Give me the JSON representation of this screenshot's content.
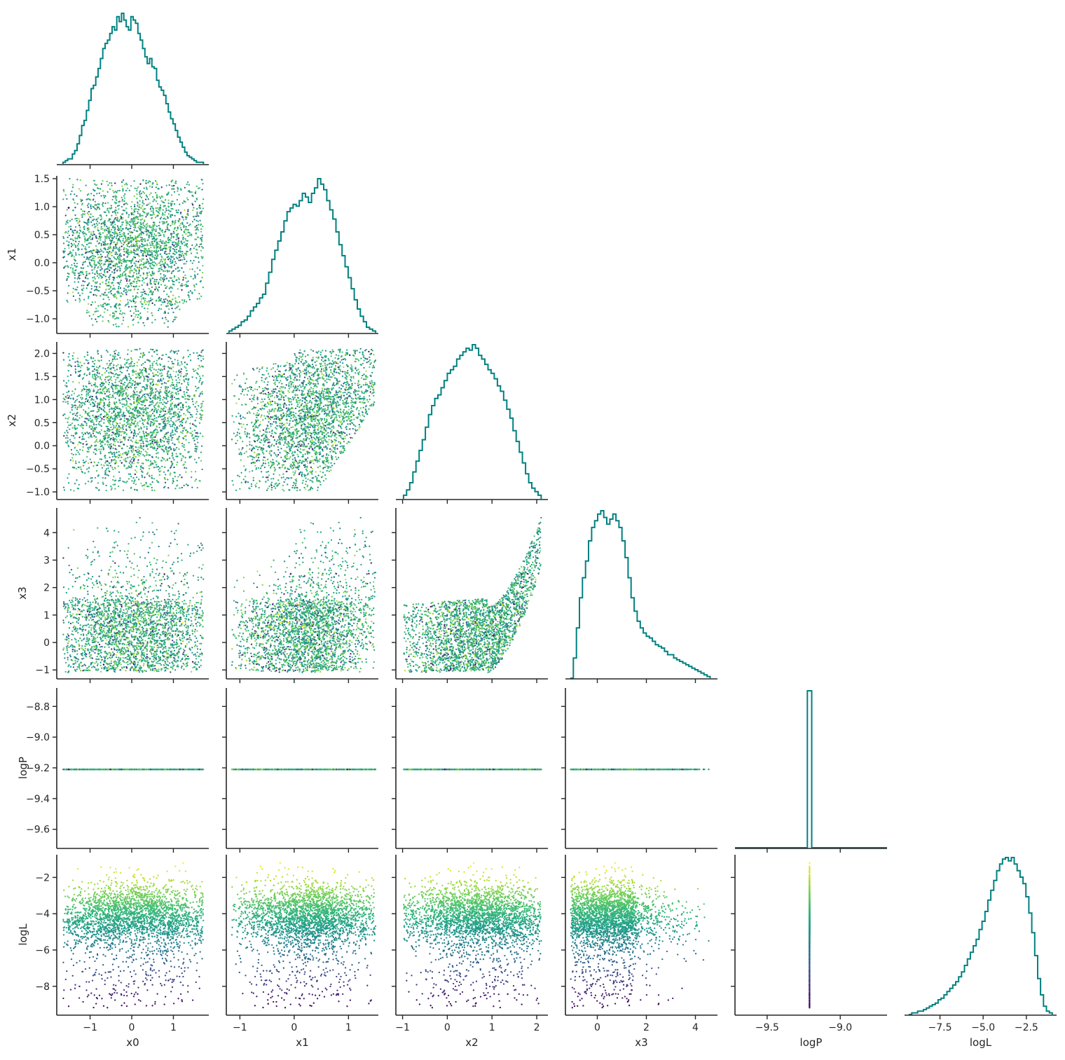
{
  "chart_data": {
    "type": "corner",
    "variables": [
      "x0",
      "x1",
      "x2",
      "x3",
      "logP",
      "logL"
    ],
    "colors": {
      "hist": "#008080",
      "axis": "#262626"
    },
    "colormap": "viridis",
    "color_by": "logL",
    "ranges": {
      "x0": [
        -1.8,
        1.85
      ],
      "x1": [
        -1.25,
        1.55
      ],
      "x2": [
        -1.15,
        2.25
      ],
      "x3": [
        -1.3,
        4.9
      ],
      "logP": [
        -9.72,
        -8.68
      ],
      "logL": [
        -9.55,
        -0.75
      ]
    },
    "ticks": {
      "x0": {
        "values": [
          -1,
          0,
          1
        ],
        "labels": [
          "−1",
          "0",
          "1"
        ]
      },
      "x1": {
        "values": [
          -1.0,
          -0.5,
          0.0,
          0.5,
          1.0,
          1.5
        ],
        "labels": [
          "−1.0",
          "−0.5",
          "0.0",
          "0.5",
          "1.0",
          "1.5"
        ],
        "x_values": [
          -1,
          0,
          1
        ],
        "x_labels": [
          "−1",
          "0",
          "1"
        ]
      },
      "x2": {
        "values": [
          -1.0,
          -0.5,
          0.0,
          0.5,
          1.0,
          1.5,
          2.0
        ],
        "labels": [
          "−1.0",
          "−0.5",
          "0.0",
          "0.5",
          "1.0",
          "1.5",
          "2.0"
        ],
        "x_values": [
          -1,
          0,
          1,
          2
        ],
        "x_labels": [
          "−1",
          "0",
          "1",
          "2"
        ]
      },
      "x3": {
        "values": [
          -1,
          0,
          1,
          2,
          3,
          4
        ],
        "labels": [
          "−1",
          "0",
          "1",
          "2",
          "3",
          "4"
        ],
        "x_values": [
          0,
          2,
          4
        ],
        "x_labels": [
          "0",
          "2",
          "4"
        ]
      },
      "logP": {
        "values": [
          -9.6,
          -9.4,
          -9.2,
          -9.0,
          -8.8
        ],
        "labels": [
          "−9.6",
          "−9.4",
          "−9.2",
          "−9.0",
          "−8.8"
        ],
        "x_values": [
          -9.5,
          -9.0
        ],
        "x_labels": [
          "−9.5",
          "−9.0"
        ]
      },
      "logL": {
        "values": [
          -8,
          -6,
          -4,
          -2
        ],
        "labels": [
          "−8",
          "−6",
          "−4",
          "−2"
        ],
        "x_values": [
          -7.5,
          -5.0,
          -2.5
        ],
        "x_labels": [
          "−7.5",
          "−5.0",
          "−2.5"
        ]
      }
    },
    "histograms": {
      "x0": {
        "range": [
          -1.65,
          1.72
        ],
        "counts": [
          1,
          2,
          3,
          3,
          6,
          8,
          12,
          17,
          23,
          26,
          32,
          38,
          45,
          47,
          52,
          57,
          63,
          69,
          72,
          74,
          78,
          82,
          80,
          88,
          85,
          90,
          86,
          82,
          80,
          88,
          86,
          84,
          78,
          74,
          69,
          64,
          60,
          63,
          58,
          57,
          50,
          46,
          44,
          41,
          36,
          31,
          27,
          24,
          20,
          16,
          13,
          10,
          7,
          5,
          4,
          3,
          2,
          1,
          1,
          1
        ]
      },
      "x1": {
        "range": [
          -1.2,
          1.5
        ],
        "counts": [
          1,
          2,
          3,
          4,
          6,
          7,
          9,
          12,
          14,
          16,
          19,
          21,
          27,
          33,
          40,
          45,
          50,
          55,
          61,
          66,
          68,
          70,
          69,
          72,
          76,
          74,
          71,
          76,
          79,
          84,
          81,
          78,
          72,
          67,
          62,
          55,
          48,
          42,
          36,
          30,
          24,
          18,
          13,
          9,
          6,
          3,
          2,
          1
        ]
      },
      "x2": {
        "range": [
          -0.98,
          2.1
        ],
        "counts": [
          2,
          5,
          9,
          15,
          21,
          27,
          33,
          40,
          47,
          52,
          56,
          58,
          62,
          66,
          70,
          72,
          74,
          78,
          80,
          82,
          84,
          83,
          86,
          84,
          80,
          78,
          75,
          72,
          70,
          67,
          63,
          60,
          55,
          50,
          45,
          38,
          32,
          26,
          20,
          14,
          9,
          6,
          4,
          2
        ]
      },
      "x3": {
        "range": [
          -1.1,
          4.6
        ],
        "counts": [
          0,
          12,
          30,
          48,
          60,
          70,
          82,
          90,
          94,
          98,
          100,
          96,
          92,
          95,
          98,
          94,
          90,
          82,
          72,
          60,
          48,
          40,
          34,
          30,
          27,
          25,
          24,
          22,
          20,
          19,
          18,
          16,
          14,
          14,
          12,
          11,
          10,
          9,
          8,
          7,
          6,
          5,
          4,
          3,
          2,
          1
        ]
      },
      "logP": {
        "range": [
          -9.72,
          -8.68
        ],
        "spike_at": -9.21,
        "spike_width": 0.03
      },
      "logL": {
        "range": [
          -9.3,
          -1.0
        ],
        "counts": [
          0,
          1,
          1,
          2,
          2,
          3,
          4,
          5,
          6,
          7,
          9,
          10,
          12,
          14,
          16,
          18,
          20,
          23,
          26,
          30,
          34,
          38,
          42,
          46,
          52,
          57,
          63,
          70,
          76,
          82,
          88,
          92,
          95,
          96,
          94,
          96,
          92,
          88,
          84,
          80,
          72,
          62,
          50,
          36,
          22,
          12,
          5,
          2,
          1
        ]
      }
    }
  }
}
